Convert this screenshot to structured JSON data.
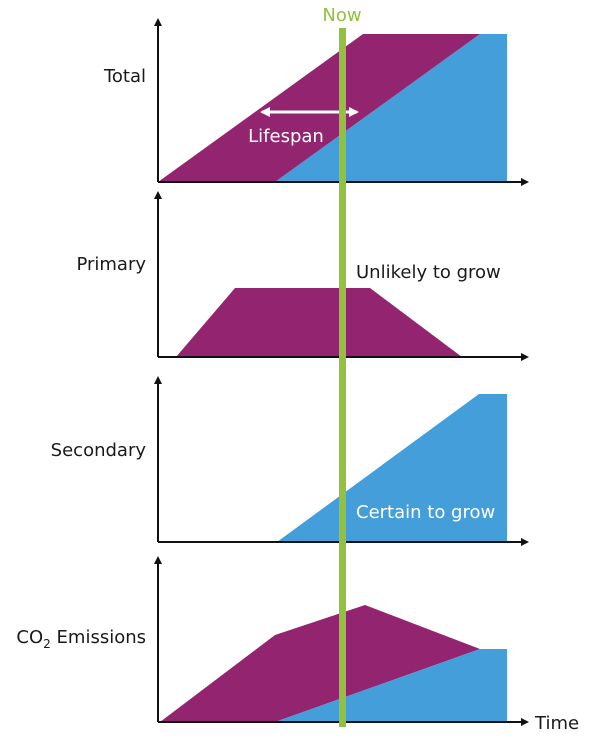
{
  "colors": {
    "primary": "#932570",
    "secondary": "#449ed9",
    "now_line": "#93c13e",
    "axis": "#111111",
    "label_on_dark": "#ffffff"
  },
  "now_label": "Now",
  "time_label": "Time",
  "panels": [
    {
      "label": "Total",
      "annotation": "Lifespan",
      "annotation_icon": "double-arrow-icon"
    },
    {
      "label": "Primary",
      "annotation": "Unlikely to grow"
    },
    {
      "label": "Secondary",
      "annotation": "Certain to grow"
    },
    {
      "label_main": "CO",
      "label_sub": "2",
      "label_rest": " Emissions"
    }
  ]
}
